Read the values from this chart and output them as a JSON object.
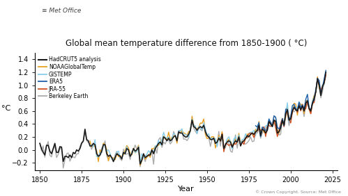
{
  "title": "Global mean temperature difference from 1850-1900 (°C)",
  "title_format": "Global mean temperature difference from 1850-1900 ( °C)",
  "xlabel": "Year",
  "ylabel": "°C",
  "xlim": [
    1847,
    2028
  ],
  "ylim": [
    -0.32,
    1.5
  ],
  "yticks": [
    -0.2,
    0.0,
    0.2,
    0.4,
    0.6,
    0.8,
    1.0,
    1.2,
    1.4
  ],
  "xticks": [
    1850,
    1875,
    1900,
    1925,
    1950,
    1975,
    2000,
    2025
  ],
  "copyright_text": "© Crown Copyright. Source: Met Office",
  "metoffice_text": "⧘ Met Office",
  "legend_entries": [
    {
      "label": "HadCRUT5 analysis",
      "color": "#1a1a1a",
      "lw": 1.2
    },
    {
      "label": "NOAAGlobalTemp",
      "color": "#E8A020",
      "lw": 1.0
    },
    {
      "label": "GISTEMP",
      "color": "#87CEEB",
      "lw": 1.0
    },
    {
      "label": "ERA5",
      "color": "#1f5fa6",
      "lw": 1.0
    },
    {
      "label": "JRA-55",
      "color": "#D05020",
      "lw": 1.0
    },
    {
      "label": "Berkeley Earth",
      "color": "#aaaaaa",
      "lw": 1.0
    }
  ],
  "background_color": "#ffffff"
}
